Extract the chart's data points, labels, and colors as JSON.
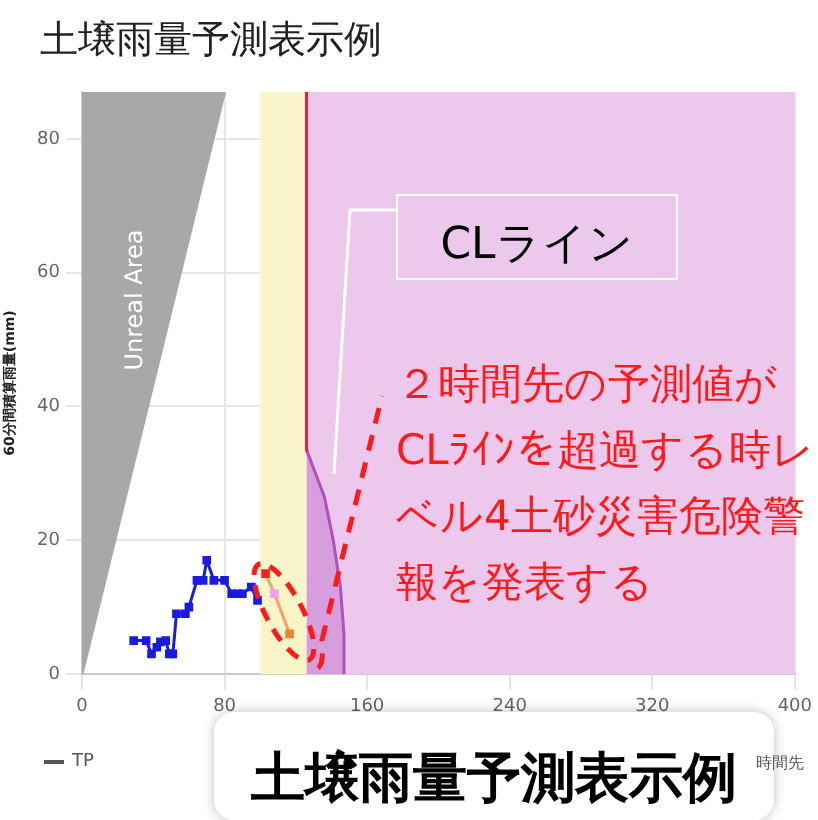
{
  "chart_data": {
    "type": "line",
    "title": "土壌雨量予測表示例",
    "ylabel": "60分間積算雨量(mm)",
    "xlim": [
      0,
      400
    ],
    "xticks": [
      0,
      80,
      160,
      240,
      320,
      400
    ],
    "ylim": [
      0,
      87
    ],
    "yticks": [
      0,
      20,
      40,
      60,
      80
    ],
    "grid": true,
    "legend": false,
    "series": [
      {
        "type": "area",
        "color": "#a8a8a8",
        "x": [
          0,
          80
        ],
        "values": [
          0,
          87
        ]
      },
      {
        "type": "line",
        "color": "#1a1ae0",
        "marker": "square",
        "x": [
          29,
          36,
          39,
          42,
          44,
          47,
          49,
          51,
          53,
          58,
          60,
          64.5,
          68,
          70,
          74,
          80,
          84,
          87.5,
          90,
          95,
          98.5
        ],
        "values": [
          5,
          5,
          3,
          4,
          4.8,
          5,
          3,
          3,
          9,
          9,
          10,
          14,
          14,
          17,
          14,
          14,
          12,
          12,
          12,
          13,
          11
        ]
      },
      {
        "type": "line",
        "color": "#f4a070",
        "colors": [
          "#ff2020",
          "#f0a0f0",
          "#f08030"
        ],
        "marker": "square",
        "x": [
          103,
          108,
          116.5
        ],
        "values": [
          15,
          12,
          6
        ]
      },
      {
        "type": "line",
        "color": "#e0204a",
        "marker": "none",
        "x": [
          126,
          126
        ],
        "values": [
          87,
          33.5
        ]
      },
      {
        "type": "area",
        "color": "#b050c0",
        "marker": "none",
        "x": [
          126,
          136,
          141,
          145,
          147,
          147
        ],
        "values": [
          33.5,
          26.5,
          20,
          13,
          6,
          0
        ]
      }
    ],
    "bands": [
      {
        "axis": "x",
        "from": 100,
        "to": 126,
        "color": "#faf5c8"
      },
      {
        "axis": "x",
        "from": 126,
        "to": 400,
        "color": "#ecc8ec"
      }
    ],
    "annotations": [
      "Unreal Area",
      "CLライン",
      {
        "text": "２時間先の予測値がCLﾗｲﾝを超過する時レベル4土砂災害危険警報を発表する",
        "x": 108,
        "y": 12
      },
      "土壌雨量予測表示例",
      "TP",
      "時間先"
    ]
  }
}
